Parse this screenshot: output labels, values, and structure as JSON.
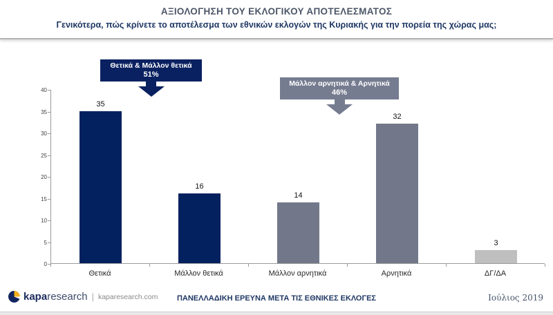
{
  "header": {
    "title": "ΑΞΙΟΛΟΓΗΣΗ ΤΟΥ ΕΚΛΟΓΙΚΟΥ ΑΠΟΤΕΛΕΣΜΑΤΟΣ",
    "subtitle": "Γενικότερα, πώς κρίνετε το αποτέλεσμα των εθνικών εκλογών της Κυριακής για την πορεία της χώρας μας;"
  },
  "callouts": [
    {
      "label": "Θετικά & Μάλλον θετικά",
      "value": "51%",
      "color": "#0a2161",
      "text_color": "#ffffff"
    },
    {
      "label": "Μάλλον αρνητικά & Αρνητικά",
      "value": "46%",
      "color": "#767c90",
      "text_color": "#ffffff"
    }
  ],
  "chart_data": {
    "type": "bar",
    "categories": [
      "Θετικά",
      "Μάλλον θετικά",
      "Μάλλον αρνητικά",
      "Αρνητικά",
      "ΔΓ/ΔΑ"
    ],
    "values": [
      35,
      16,
      14,
      32,
      3
    ],
    "bar_colors": [
      "#04215f",
      "#04215f",
      "#727889",
      "#727889",
      "#bfbfbf"
    ],
    "title": "",
    "xlabel": "",
    "ylabel": "",
    "ylim": [
      0,
      40
    ],
    "y_ticks": [
      0,
      5,
      10,
      15,
      20,
      25,
      30,
      35,
      40
    ],
    "grid": false,
    "data_labels": true,
    "legend": "none"
  },
  "footer": {
    "logo": {
      "brand_bold": "kapa",
      "brand_light": "research",
      "separator": "|",
      "site": "kaparesearch.com",
      "icon_navy": "#13255f",
      "icon_yellow": "#f2b01e"
    },
    "center_text": "ΠΑΝΕΛΛΑΔΙΚΗ ΕΡΕΥΝΑ ΜΕΤΑ ΤΙΣ ΕΘΝΙΚΕΣ ΕΚΛΟΓΕΣ",
    "date": "Ιούλιος 2019"
  }
}
